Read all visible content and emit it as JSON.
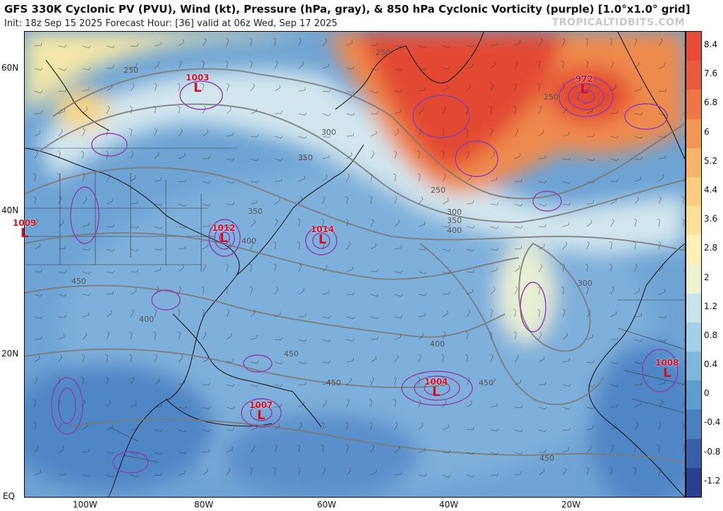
{
  "header": {
    "title": "GFS 330K Cyclonic PV (PVU), Wind (kt), Pressure (hPa, gray), & 850 hPa Cyclonic Vorticity (purple) [1.0°x1.0° grid]",
    "subtitle": "Init: 18z Sep 15 2025   Forecast Hour: [36]   valid at 06z Wed, Sep 17 2025",
    "watermark": "TROPICALTIDBITS.COM"
  },
  "axes": {
    "lat_labels": [
      "60N",
      "40N",
      "20N",
      "EQ"
    ],
    "lon_labels": [
      "100W",
      "80W",
      "60W",
      "40W",
      "20W"
    ]
  },
  "colorbar": {
    "labels": [
      "8.4",
      "7.6",
      "6.8",
      "6",
      "5.2",
      "4.4",
      "3.6",
      "2.8",
      "2",
      "1.2",
      "0.8",
      "0.4",
      "0",
      "-0.4",
      "-0.8",
      "-1.2"
    ],
    "colors": [
      "#e84a3a",
      "#ea5a3e",
      "#ee7748",
      "#f29656",
      "#f6b46a",
      "#f9cc80",
      "#fbe09a",
      "#fdf0b8",
      "#eef2d0",
      "#c8e3ea",
      "#a4cfe6",
      "#80b6dc",
      "#5f9ccf",
      "#4a80bf",
      "#3a5fa8",
      "#2c3f8e"
    ]
  },
  "lows": [
    {
      "pressure": "1003",
      "symbol": "L"
    },
    {
      "pressure": "972",
      "symbol": "L"
    },
    {
      "pressure": "1009",
      "symbol": "L"
    },
    {
      "pressure": "1012",
      "symbol": "L"
    },
    {
      "pressure": "1014",
      "symbol": "L"
    },
    {
      "pressure": "1004",
      "symbol": "L"
    },
    {
      "pressure": "1007",
      "symbol": "L"
    },
    {
      "pressure": "1008",
      "symbol": "L"
    }
  ],
  "contour_labels": [
    "250",
    "250",
    "250",
    "250",
    "300",
    "300",
    "300",
    "350",
    "350",
    "350",
    "400",
    "400",
    "400",
    "400",
    "450",
    "450",
    "450",
    "450",
    "450"
  ]
}
